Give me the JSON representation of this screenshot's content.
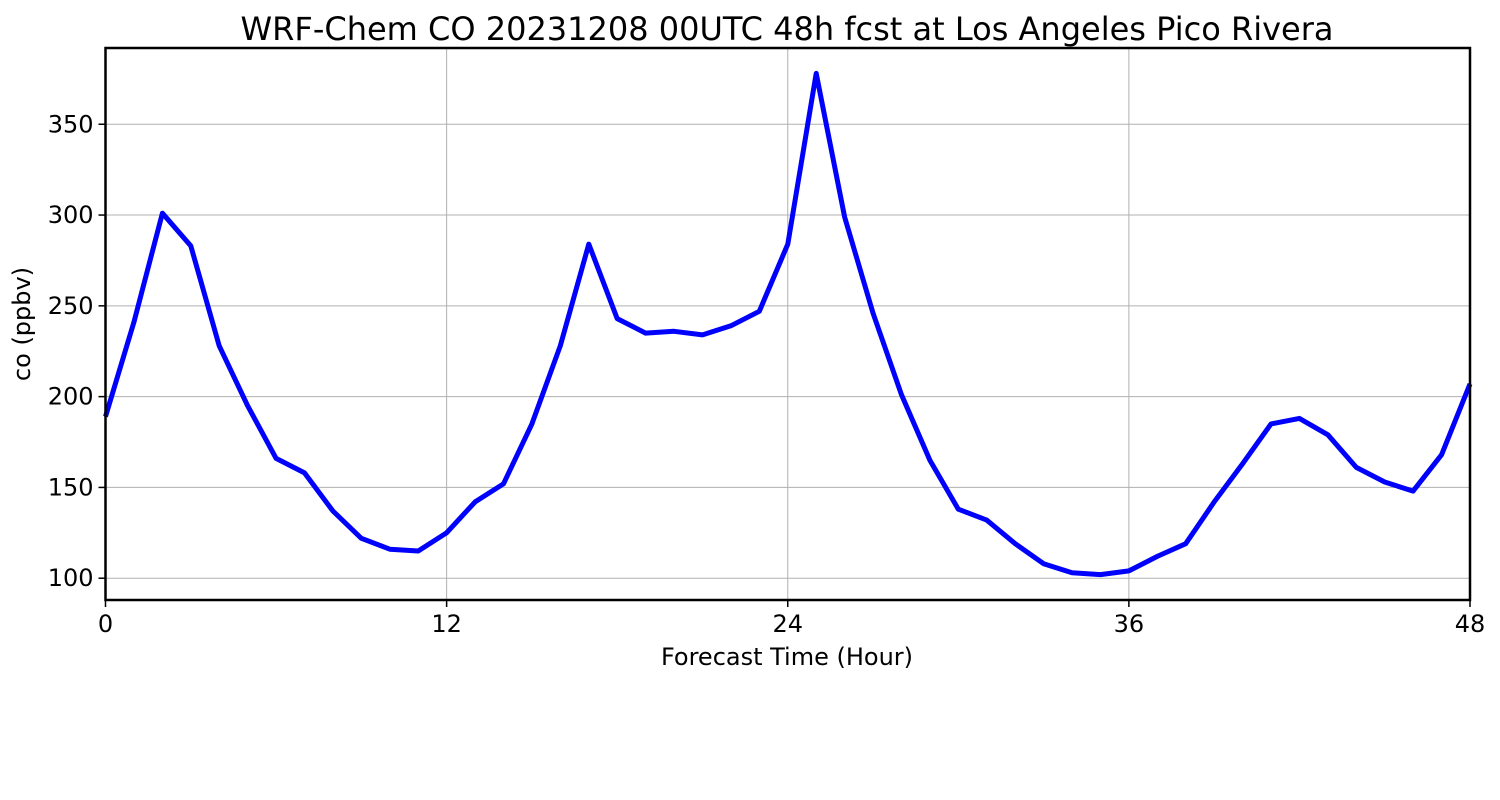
{
  "chart_data": {
    "type": "line",
    "title": "WRF-Chem CO  20231208 00UTC 48h fcst at Los Angeles Pico Rivera",
    "xlabel": "Forecast Time (Hour)",
    "ylabel": "co  (ppbv)",
    "xlim": [
      0,
      48
    ],
    "ylim": [
      88,
      392
    ],
    "xticks": [
      0,
      12,
      24,
      36,
      48
    ],
    "yticks": [
      100,
      150,
      200,
      250,
      300,
      350
    ],
    "grid": true,
    "series": [
      {
        "color": "#0000ff",
        "x": [
          0,
          1,
          2,
          3,
          4,
          5,
          6,
          7,
          8,
          9,
          10,
          11,
          12,
          13,
          14,
          15,
          16,
          17,
          18,
          19,
          20,
          21,
          22,
          23,
          24,
          25,
          26,
          27,
          28,
          29,
          30,
          31,
          32,
          33,
          34,
          35,
          36,
          37,
          38,
          39,
          40,
          41,
          42,
          43,
          44,
          45,
          46,
          47,
          48
        ],
        "values": [
          189,
          241,
          301,
          283,
          228,
          195,
          166,
          158,
          137,
          122,
          116,
          115,
          125,
          142,
          152,
          185,
          228,
          284,
          243,
          235,
          236,
          234,
          239,
          247,
          284,
          378,
          299,
          246,
          201,
          165,
          138,
          132,
          119,
          108,
          103,
          102,
          104,
          112,
          119,
          142,
          163,
          185,
          188,
          179,
          161,
          153,
          148,
          168,
          207
        ]
      }
    ]
  }
}
